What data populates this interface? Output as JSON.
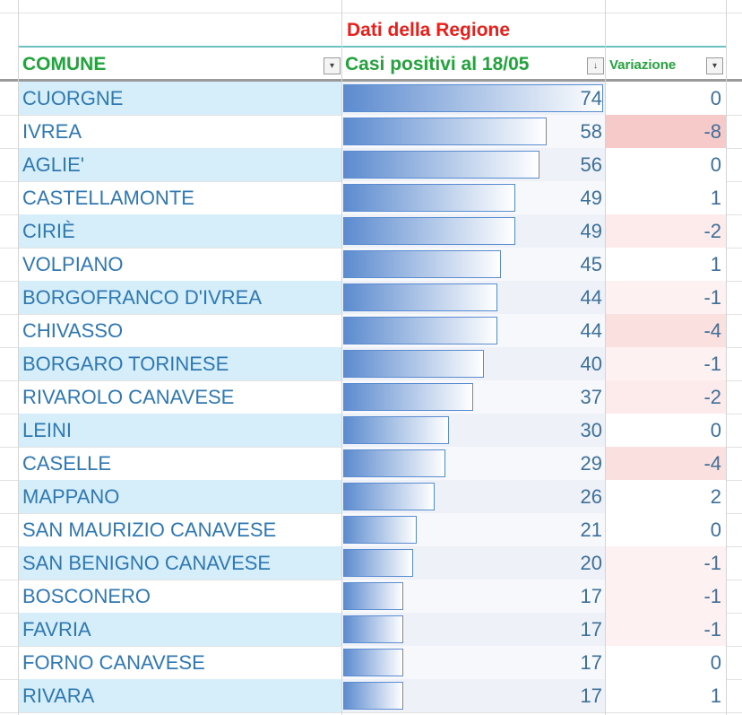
{
  "header": {
    "group_title": "Dati della Regione",
    "columns": [
      "COMUNE",
      "Casi positivi al 18/05",
      "Variazione"
    ]
  },
  "table": {
    "rows": [
      [
        "CUORGNE",
        74,
        0
      ],
      [
        "IVREA",
        58,
        -8
      ],
      [
        "AGLIE'",
        56,
        0
      ],
      [
        "CASTELLAMONTE",
        49,
        1
      ],
      [
        "CIRIÈ",
        49,
        -2
      ],
      [
        "VOLPIANO",
        45,
        1
      ],
      [
        "BORGOFRANCO D'IVREA",
        44,
        -1
      ],
      [
        "CHIVASSO",
        44,
        -4
      ],
      [
        "BORGARO TORINESE",
        40,
        -1
      ],
      [
        "RIVAROLO CANAVESE",
        37,
        -2
      ],
      [
        "LEINI",
        30,
        0
      ],
      [
        "CASELLE",
        29,
        -4
      ],
      [
        "MAPPANO",
        26,
        2
      ],
      [
        "SAN MAURIZIO CANAVESE",
        21,
        0
      ],
      [
        "SAN BENIGNO CANAVESE",
        20,
        -1
      ],
      [
        "BOSCONERO",
        17,
        -1
      ],
      [
        "FAVRIA",
        17,
        -1
      ],
      [
        "FORNO CANAVESE",
        17,
        0
      ],
      [
        "RIVARA",
        17,
        1
      ]
    ]
  }
}
